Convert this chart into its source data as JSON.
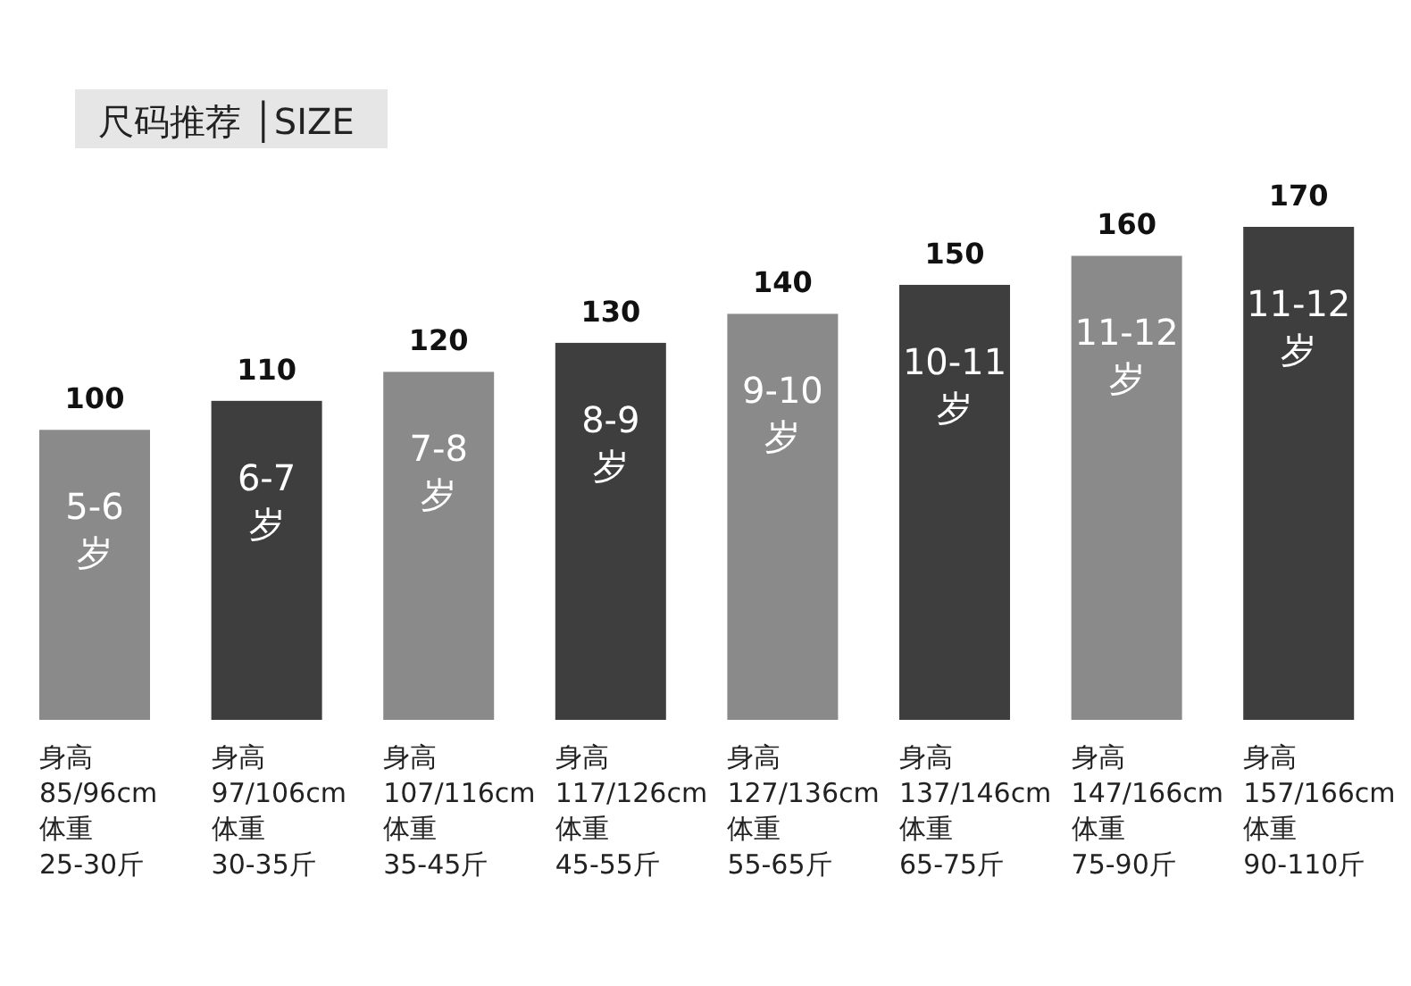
{
  "chart_data": {
    "type": "bar",
    "title": "尺码推荐 │SIZE",
    "categories": [
      "5-6\n岁",
      "6-7\n岁",
      "7-8\n岁",
      "8-9\n岁",
      "9-10\n岁",
      "10-11\n岁",
      "11-12\n岁",
      "11-12\n岁"
    ],
    "values": [
      100,
      110,
      120,
      130,
      140,
      150,
      160,
      170
    ],
    "colors": [
      "#8a8a8a",
      "#3e3e3e",
      "#8a8a8a",
      "#3e3e3e",
      "#8a8a8a",
      "#3e3e3e",
      "#8a8a8a",
      "#3e3e3e"
    ],
    "data_labels": true,
    "annotations": [
      "身高\n85/96cm\n体重\n25-30斤",
      "身高\n97/106cm\n体重\n30-35斤",
      "身高\n107/116cm\n体重\n35-45斤",
      "身高\n117/126cm\n体重\n45-55斤",
      "身高\n127/136cm\n体重\n55-65斤",
      "身高\n137/146cm\n体重\n65-75斤",
      "身高\n147/166cm\n体重\n75-90斤",
      "身高\n157/166cm\n体重\n90-110斤"
    ]
  }
}
